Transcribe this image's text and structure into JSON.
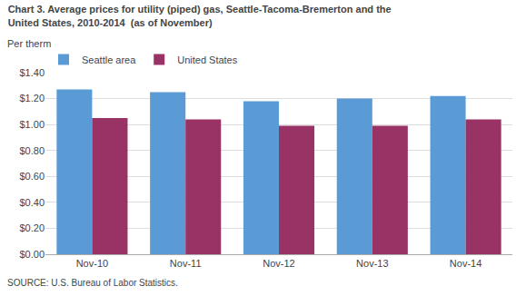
{
  "chart_data": {
    "type": "bar",
    "title": [
      "Chart 3. Average prices for utility (piped) gas, Seattle-Tacoma-Bremerton and the",
      "United States, 2010-2014  (as of November)"
    ],
    "ylabel": "Per therm",
    "source": "SOURCE: U.S. Bureau of Labor Statistics.",
    "categories": [
      "Nov-10",
      "Nov-11",
      "Nov-12",
      "Nov-13",
      "Nov-14"
    ],
    "series": [
      {
        "name": "Seattle area",
        "color": "#5B9BD5",
        "values": [
          1.27,
          1.25,
          1.18,
          1.2,
          1.22
        ]
      },
      {
        "name": "United States",
        "color": "#993366",
        "values": [
          1.05,
          1.04,
          0.99,
          0.99,
          1.04
        ]
      }
    ],
    "ylim": [
      0,
      1.4
    ],
    "yticks": [
      {
        "value": 0.0,
        "label": "$0.00"
      },
      {
        "value": 0.2,
        "label": "$0.20"
      },
      {
        "value": 0.4,
        "label": "$0.40"
      },
      {
        "value": 0.6,
        "label": "$0.60"
      },
      {
        "value": 0.8,
        "label": "$0.80"
      },
      {
        "value": 1.0,
        "label": "$1.00"
      },
      {
        "value": 1.2,
        "label": "$1.20"
      },
      {
        "value": 1.4,
        "label": "$1.40"
      }
    ],
    "grid": true,
    "legend": "upper left"
  }
}
